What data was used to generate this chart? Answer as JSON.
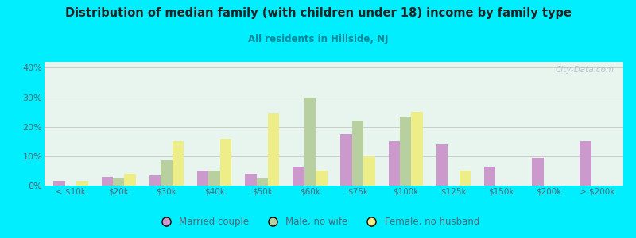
{
  "title": "Distribution of median family (with children under 18) income by family type",
  "subtitle": "All residents in Hillside, NJ",
  "categories": [
    "< $10k",
    "$20k",
    "$30k",
    "$40k",
    "$50k",
    "$60k",
    "$75k",
    "$100k",
    "$125k",
    "$150k",
    "$200k",
    "> $200k"
  ],
  "series": {
    "Married couple": [
      1.5,
      3.0,
      3.5,
      5.0,
      4.0,
      6.5,
      17.5,
      15.0,
      14.0,
      6.5,
      9.5,
      15.0
    ],
    "Male, no wife": [
      0.0,
      2.5,
      8.5,
      5.0,
      2.5,
      30.0,
      22.0,
      23.5,
      0.0,
      0.0,
      0.0,
      0.0
    ],
    "Female, no husband": [
      1.5,
      4.0,
      15.0,
      16.0,
      24.5,
      5.0,
      10.0,
      25.0,
      5.0,
      0.0,
      0.0,
      0.0
    ]
  },
  "colors": {
    "Married couple": "#cc99cc",
    "Male, no wife": "#b8cfa0",
    "Female, no husband": "#eeee88"
  },
  "ylim": [
    0,
    42
  ],
  "yticks": [
    0,
    10,
    20,
    30,
    40
  ],
  "ytick_labels": [
    "0%",
    "10%",
    "20%",
    "30%",
    "40%"
  ],
  "background_outer": "#00eeff",
  "background_inner": "#e8f5ee",
  "grid_color": "#cccccc",
  "title_color": "#222222",
  "subtitle_color": "#008899",
  "axis_label_color": "#556677",
  "watermark": "City-Data.com"
}
